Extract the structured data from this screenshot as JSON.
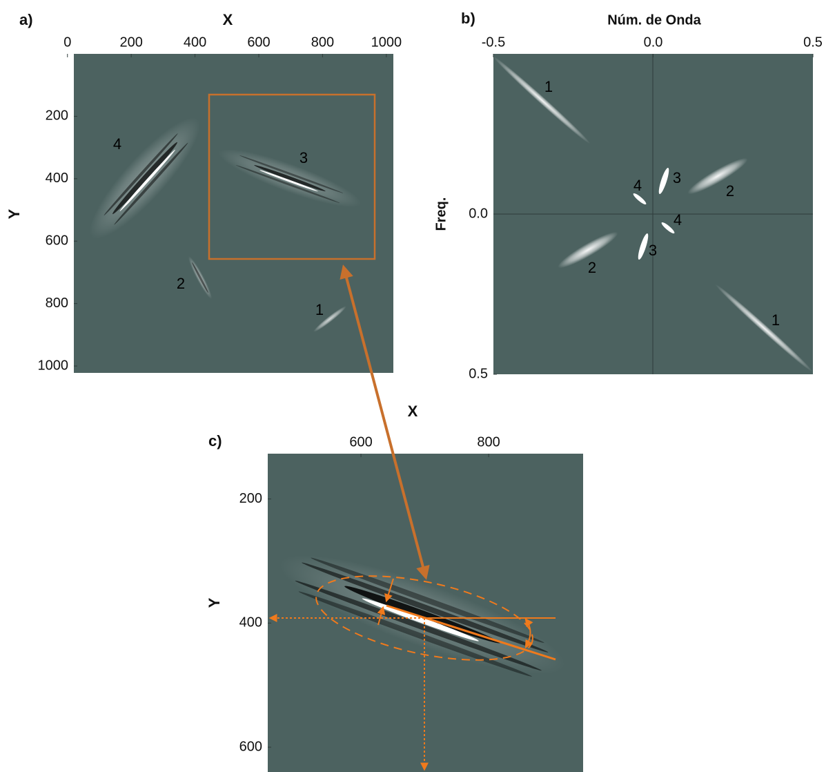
{
  "panels": {
    "a": {
      "tag": "a)",
      "x_label": "X",
      "y_label": "Y",
      "xlim": [
        20,
        1022
      ],
      "ylim": [
        0,
        1022
      ],
      "xticks": [
        0,
        200,
        400,
        600,
        800,
        1000
      ],
      "yticks": [
        200,
        400,
        600,
        800,
        1000
      ],
      "labels": [
        "4",
        "3",
        "2",
        "1"
      ]
    },
    "b": {
      "tag": "b)",
      "x_label": "Núm. de Onda",
      "y_label": "Freq.",
      "xlim": [
        -0.5,
        0.5
      ],
      "ylim": [
        -0.5,
        0.5
      ],
      "xticks": [
        {
          "value": -0.5,
          "label": "-0.5"
        },
        {
          "value": 0,
          "label": "0.0"
        },
        0.5
      ],
      "yticks": [
        {
          "value": 0,
          "label": "0.0"
        },
        0.5
      ],
      "labels": [
        "1",
        "3",
        "4",
        "2",
        "4",
        "3",
        "2",
        "1"
      ]
    },
    "c": {
      "tag": "c)",
      "x_label": "X",
      "y_label": "Y",
      "xlim": [
        454,
        948
      ],
      "ylim": [
        127,
        640
      ],
      "xticks": [
        600,
        800
      ],
      "yticks": [
        200,
        400,
        600
      ]
    }
  }
}
